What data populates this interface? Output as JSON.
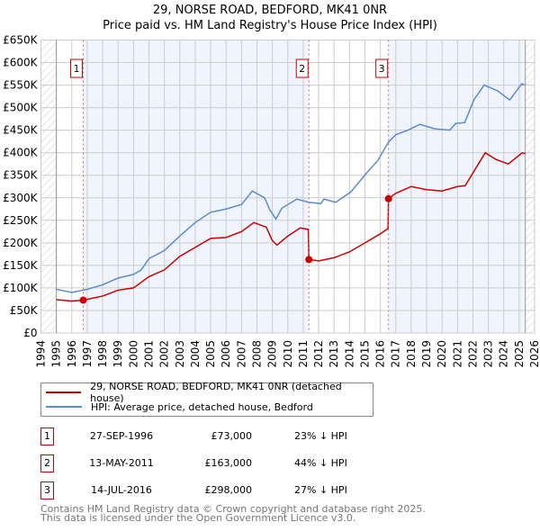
{
  "title": "29, NORSE ROAD, BEDFORD, MK41 0NR",
  "subtitle": "Price paid vs. HM Land Registry's House Price Index (HPI)",
  "chart_data": {
    "type": "line",
    "xlim": [
      1994,
      2026
    ],
    "ylim": [
      0,
      650000
    ],
    "x_ticks": [
      "1994",
      "1995",
      "1996",
      "1997",
      "1998",
      "1999",
      "2000",
      "2001",
      "2002",
      "2003",
      "2004",
      "2005",
      "2006",
      "2007",
      "2008",
      "2009",
      "2010",
      "2011",
      "2012",
      "2013",
      "2014",
      "2015",
      "2016",
      "2017",
      "2018",
      "2019",
      "2020",
      "2021",
      "2022",
      "2023",
      "2024",
      "2025",
      "2026"
    ],
    "y_ticks": [
      {
        "v": 0,
        "label": "£0"
      },
      {
        "v": 50000,
        "label": "£50K"
      },
      {
        "v": 100000,
        "label": "£100K"
      },
      {
        "v": 150000,
        "label": "£150K"
      },
      {
        "v": 200000,
        "label": "£200K"
      },
      {
        "v": 250000,
        "label": "£250K"
      },
      {
        "v": 300000,
        "label": "£300K"
      },
      {
        "v": 350000,
        "label": "£350K"
      },
      {
        "v": 400000,
        "label": "£400K"
      },
      {
        "v": 450000,
        "label": "£450K"
      },
      {
        "v": 500000,
        "label": "£500K"
      },
      {
        "v": 550000,
        "label": "£550K"
      },
      {
        "v": 600000,
        "label": "£600K"
      },
      {
        "v": 650000,
        "label": "£650K"
      }
    ],
    "grid": true,
    "data_range": [
      1995,
      2025.4
    ],
    "series": [
      {
        "name": "29, NORSE ROAD, BEDFORD, MK41 0NR (detached house)",
        "color": "#cc0000",
        "points": [
          [
            1995,
            74000
          ],
          [
            1996,
            71000
          ],
          [
            1996.74,
            73000
          ],
          [
            1998,
            82000
          ],
          [
            1999,
            95000
          ],
          [
            2000,
            100000
          ],
          [
            2001,
            125000
          ],
          [
            2002,
            140000
          ],
          [
            2003,
            170000
          ],
          [
            2004,
            190000
          ],
          [
            2005,
            210000
          ],
          [
            2006,
            212000
          ],
          [
            2007,
            225000
          ],
          [
            2007.8,
            245000
          ],
          [
            2008.6,
            235000
          ],
          [
            2009,
            205000
          ],
          [
            2009.3,
            195000
          ],
          [
            2010,
            215000
          ],
          [
            2010.8,
            233000
          ],
          [
            2011.33,
            230000
          ],
          [
            2011.37,
            163000
          ],
          [
            2012,
            160000
          ],
          [
            2013,
            167000
          ],
          [
            2014,
            180000
          ],
          [
            2015,
            200000
          ],
          [
            2016,
            220000
          ],
          [
            2016.5,
            232000
          ],
          [
            2016.53,
            298000
          ],
          [
            2017,
            310000
          ],
          [
            2018,
            325000
          ],
          [
            2019,
            318000
          ],
          [
            2020,
            315000
          ],
          [
            2021,
            325000
          ],
          [
            2021.5,
            327000
          ],
          [
            2022,
            355000
          ],
          [
            2022.8,
            400000
          ],
          [
            2023.5,
            385000
          ],
          [
            2024.3,
            375000
          ],
          [
            2025.2,
            400000
          ],
          [
            2025.4,
            398000
          ]
        ]
      },
      {
        "name": "HPI: Average price, detached house, Bedford",
        "color": "#5b8bd0",
        "points": [
          [
            1995,
            97000
          ],
          [
            1996,
            90000
          ],
          [
            1997,
            97000
          ],
          [
            1998,
            107000
          ],
          [
            1999,
            122000
          ],
          [
            2000,
            130000
          ],
          [
            2000.5,
            140000
          ],
          [
            2001,
            165000
          ],
          [
            2002,
            183000
          ],
          [
            2003,
            215000
          ],
          [
            2004,
            245000
          ],
          [
            2005,
            268000
          ],
          [
            2006,
            275000
          ],
          [
            2007,
            285000
          ],
          [
            2007.7,
            315000
          ],
          [
            2008.5,
            300000
          ],
          [
            2008.84,
            273000
          ],
          [
            2009.23,
            253000
          ],
          [
            2009.62,
            277000
          ],
          [
            2010.59,
            297000
          ],
          [
            2011.37,
            290000
          ],
          [
            2012.15,
            287000
          ],
          [
            2012.34,
            297000
          ],
          [
            2013.11,
            290000
          ],
          [
            2014.09,
            313000
          ],
          [
            2015.06,
            353000
          ],
          [
            2015.84,
            383000
          ],
          [
            2016.52,
            423000
          ],
          [
            2017,
            440000
          ],
          [
            2017.78,
            450000
          ],
          [
            2018.56,
            463000
          ],
          [
            2019.53,
            453000
          ],
          [
            2020.5,
            450000
          ],
          [
            2020.89,
            465000
          ],
          [
            2021.47,
            467000
          ],
          [
            2022.06,
            517000
          ],
          [
            2022.73,
            550000
          ],
          [
            2023.61,
            537000
          ],
          [
            2024.39,
            517000
          ],
          [
            2025.17,
            553000
          ],
          [
            2025.36,
            550000
          ]
        ]
      }
    ],
    "sales": [
      {
        "label": "1",
        "x": 1996.74,
        "y": 73000
      },
      {
        "label": "2",
        "x": 2011.37,
        "y": 163000
      },
      {
        "label": "3",
        "x": 2016.53,
        "y": 298000
      }
    ]
  },
  "legend": {
    "items": [
      {
        "label": "29, NORSE ROAD, BEDFORD, MK41 0NR (detached house)",
        "color": "#cc0000"
      },
      {
        "label": "HPI: Average price, detached house, Bedford",
        "color": "#5b8bd0"
      }
    ]
  },
  "transactions": [
    {
      "num": "1",
      "date": "27-SEP-1996",
      "price": "£73,000",
      "hpi": "23% ↓ HPI"
    },
    {
      "num": "2",
      "date": "13-MAY-2011",
      "price": "£163,000",
      "hpi": "44% ↓ HPI"
    },
    {
      "num": "3",
      "date": "14-JUL-2016",
      "price": "£298,000",
      "hpi": "27% ↓ HPI"
    }
  ],
  "footer": {
    "line1": "Contains HM Land Registry data © Crown copyright and database right 2025.",
    "line2": "This data is licensed under the Open Government Licence v3.0."
  }
}
